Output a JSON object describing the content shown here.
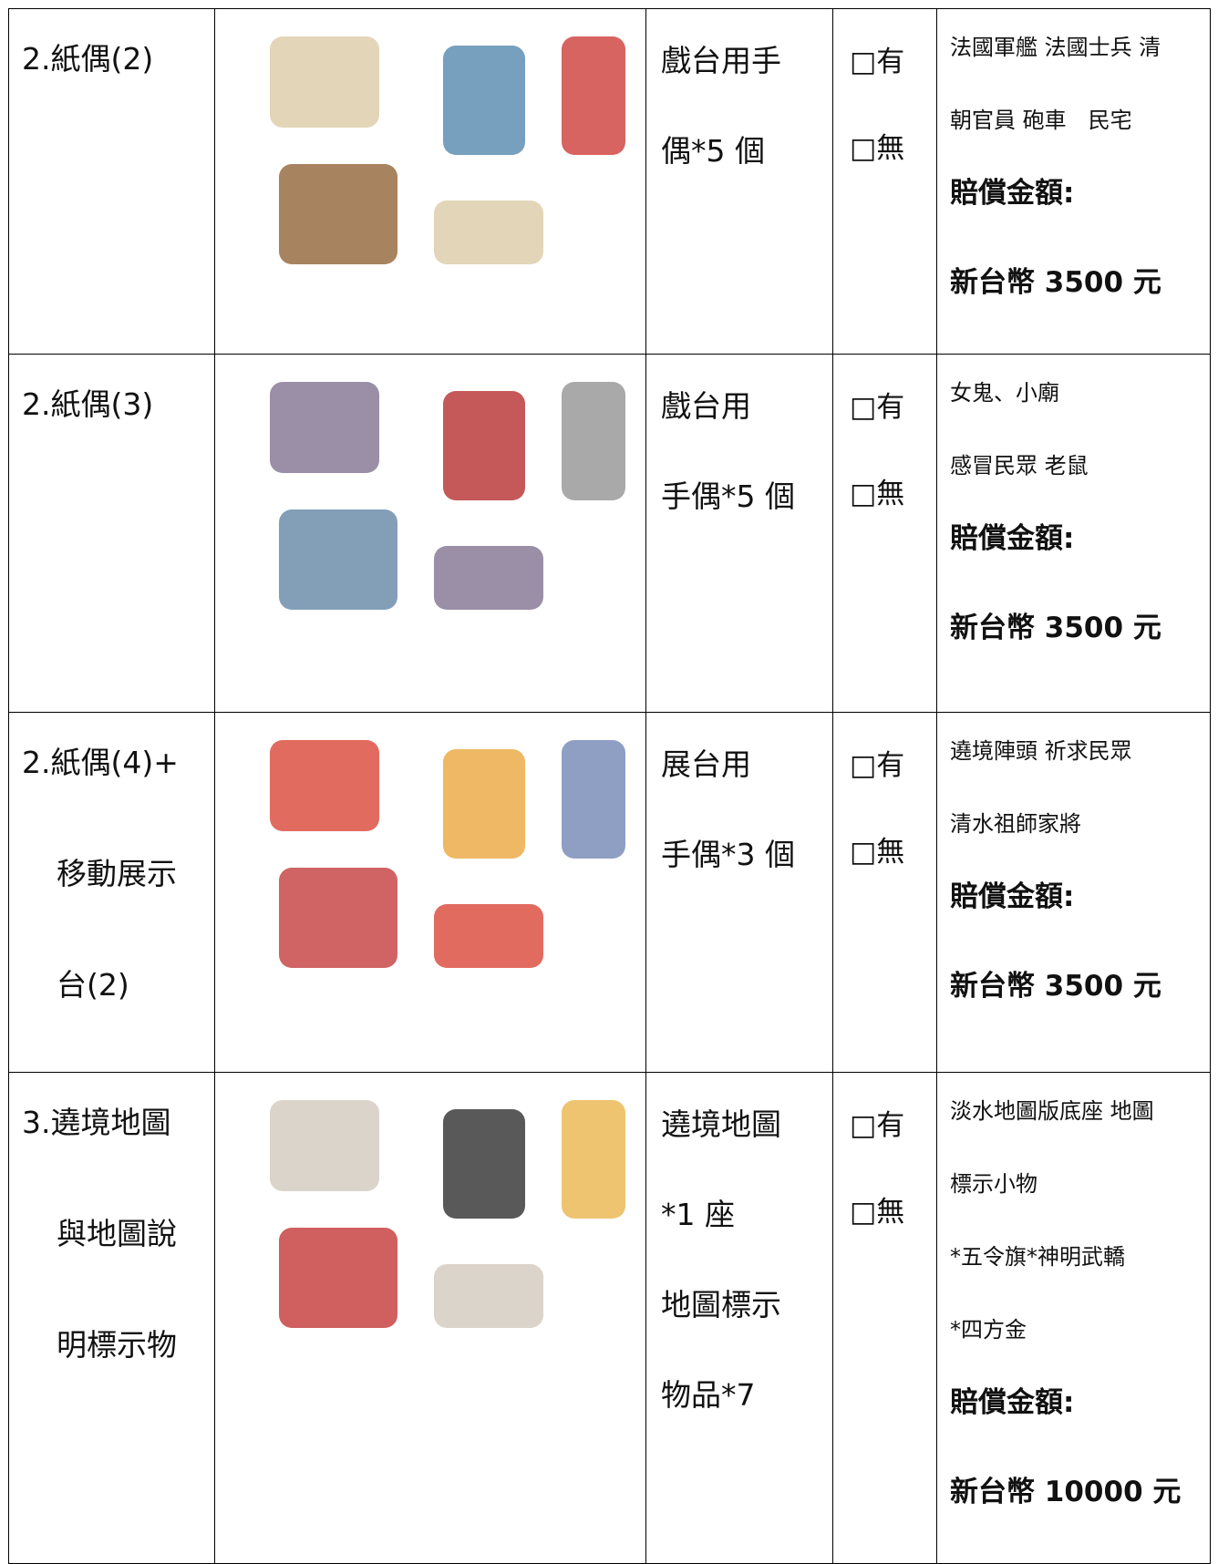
{
  "table": {
    "rows": [
      {
        "item": [
          "2.紙偶(2)"
        ],
        "usage": [
          "戲台用手",
          "偶*5 個"
        ],
        "check": [
          "□有",
          "□無"
        ],
        "description": [
          "法國軍艦 法國士兵 清",
          "朝官員 砲車　民宅"
        ],
        "compensation": [
          "賠償金額:",
          "新台幣 3500 元"
        ]
      },
      {
        "item": [
          "2.紙偶(3)"
        ],
        "usage": [
          "戲台用",
          "手偶*5 個"
        ],
        "check": [
          "□有",
          "□無"
        ],
        "description": [
          "女鬼、小廟",
          "感冒民眾 老鼠"
        ],
        "compensation": [
          "賠償金額:",
          "新台幣 3500 元"
        ]
      },
      {
        "item": [
          "2.紙偶(4)+",
          "移動展示",
          "台(2)"
        ],
        "usage": [
          "展台用",
          "手偶*3 個"
        ],
        "check": [
          "□有",
          "□無"
        ],
        "description": [
          "遶境陣頭 祈求民眾",
          "清水祖師家將"
        ],
        "compensation": [
          "賠償金額:",
          "新台幣 3500 元"
        ]
      },
      {
        "item": [
          "3.遶境地圖",
          "與地圖說",
          "明標示物"
        ],
        "usage": [
          "遶境地圖",
          "*1 座",
          "地圖標示",
          "物品*7"
        ],
        "check": [
          "□有",
          "□無"
        ],
        "description": [
          "淡水地圖版底座 地圖",
          "標示小物",
          "*五令旗*神明武轎",
          "*四方金"
        ],
        "compensation": [
          "賠償金額:",
          "新台幣 10000 元"
        ]
      }
    ]
  }
}
